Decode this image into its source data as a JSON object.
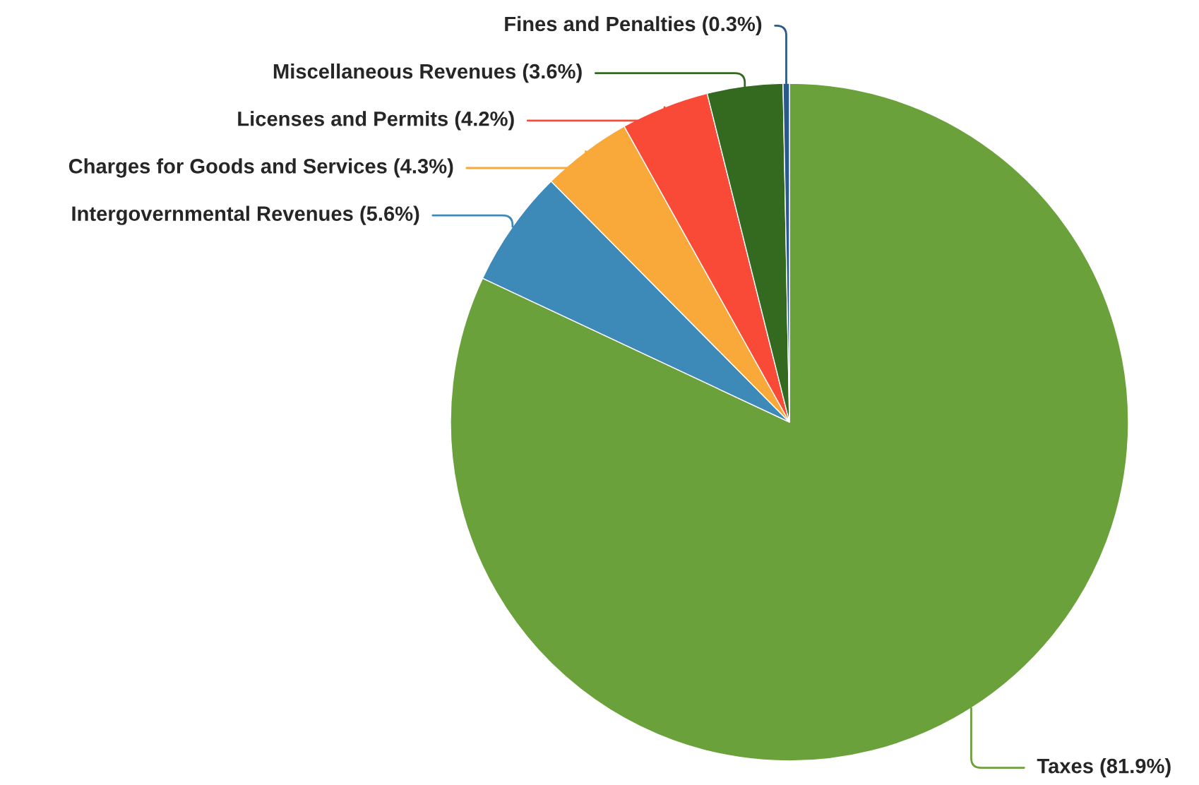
{
  "chart_data": {
    "type": "pie",
    "categories": [
      "Taxes",
      "Intergovernmental Revenues",
      "Charges for Goods and Services",
      "Licenses and Permits",
      "Miscellaneous Revenues",
      "Fines and Penalties"
    ],
    "values": [
      81.9,
      5.6,
      4.3,
      4.2,
      3.6,
      0.3
    ],
    "colors": [
      "#6aa13b",
      "#3d8ab8",
      "#f9a93a",
      "#f84a37",
      "#336a1f",
      "#2b5a8a"
    ],
    "value_labels": [
      "(81.9%)",
      "(5.6%)",
      "(4.3%)",
      "(4.2%)",
      "(3.6%)",
      "(0.3%)"
    ],
    "legend": false
  }
}
